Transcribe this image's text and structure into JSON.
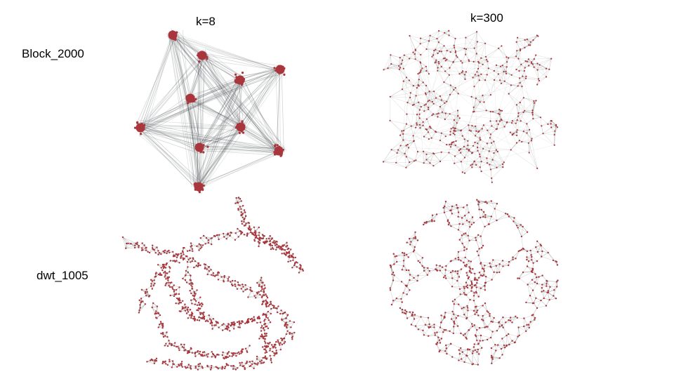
{
  "columns": [
    {
      "label": "k=8"
    },
    {
      "label": "k=300"
    }
  ],
  "rows": [
    {
      "label": "Block_2000"
    },
    {
      "label": "dwt_1005"
    }
  ],
  "colors": {
    "node": "#a8363c",
    "edge": "#4a5052",
    "background": "#ffffff"
  }
}
